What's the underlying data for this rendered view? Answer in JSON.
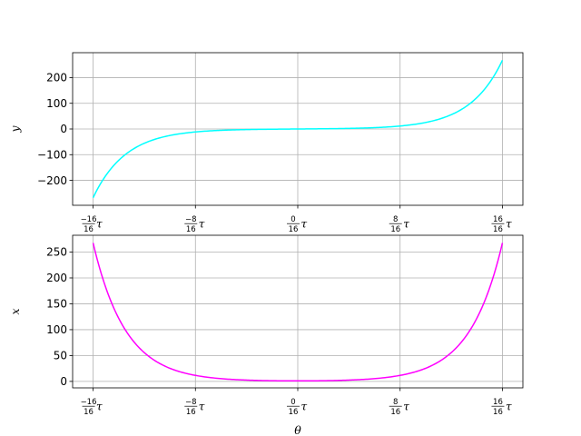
{
  "chart_data": [
    {
      "type": "line",
      "xlabel": "",
      "ylabel": "y",
      "xlim_tau": [
        -1.1,
        1.1
      ],
      "ylim": [
        -297,
        297
      ],
      "grid": true,
      "series": [
        {
          "color": "#00FFFF",
          "function": "sinh(theta)",
          "x_range_tau": [
            -1,
            1
          ]
        }
      ],
      "yticks": [
        -200,
        -100,
        0,
        100,
        200
      ],
      "ytick_labels": [
        "−200",
        "−100",
        "0",
        "100",
        "200"
      ],
      "xticks_tau": [
        -1,
        -0.5,
        0,
        0.5,
        1
      ],
      "xtick_numerators": [
        "−16",
        "−8",
        "0",
        "8",
        "16"
      ],
      "xtick_denominator": "16",
      "xtick_unit": "τ"
    },
    {
      "type": "line",
      "xlabel": "θ",
      "ylabel": "x",
      "xlim_tau": [
        -1.1,
        1.1
      ],
      "ylim": [
        -12.5,
        282.5
      ],
      "grid": true,
      "series": [
        {
          "color": "#FF00FF",
          "function": "cosh(theta)",
          "x_range_tau": [
            -1,
            1
          ]
        }
      ],
      "yticks": [
        0,
        50,
        100,
        150,
        200,
        250
      ],
      "ytick_labels": [
        "0",
        "50",
        "100",
        "150",
        "200",
        "250"
      ],
      "xticks_tau": [
        -1,
        -0.5,
        0,
        0.5,
        1
      ],
      "xtick_numerators": [
        "−16",
        "−8",
        "0",
        "8",
        "16"
      ],
      "xtick_denominator": "16",
      "xtick_unit": "τ"
    }
  ]
}
